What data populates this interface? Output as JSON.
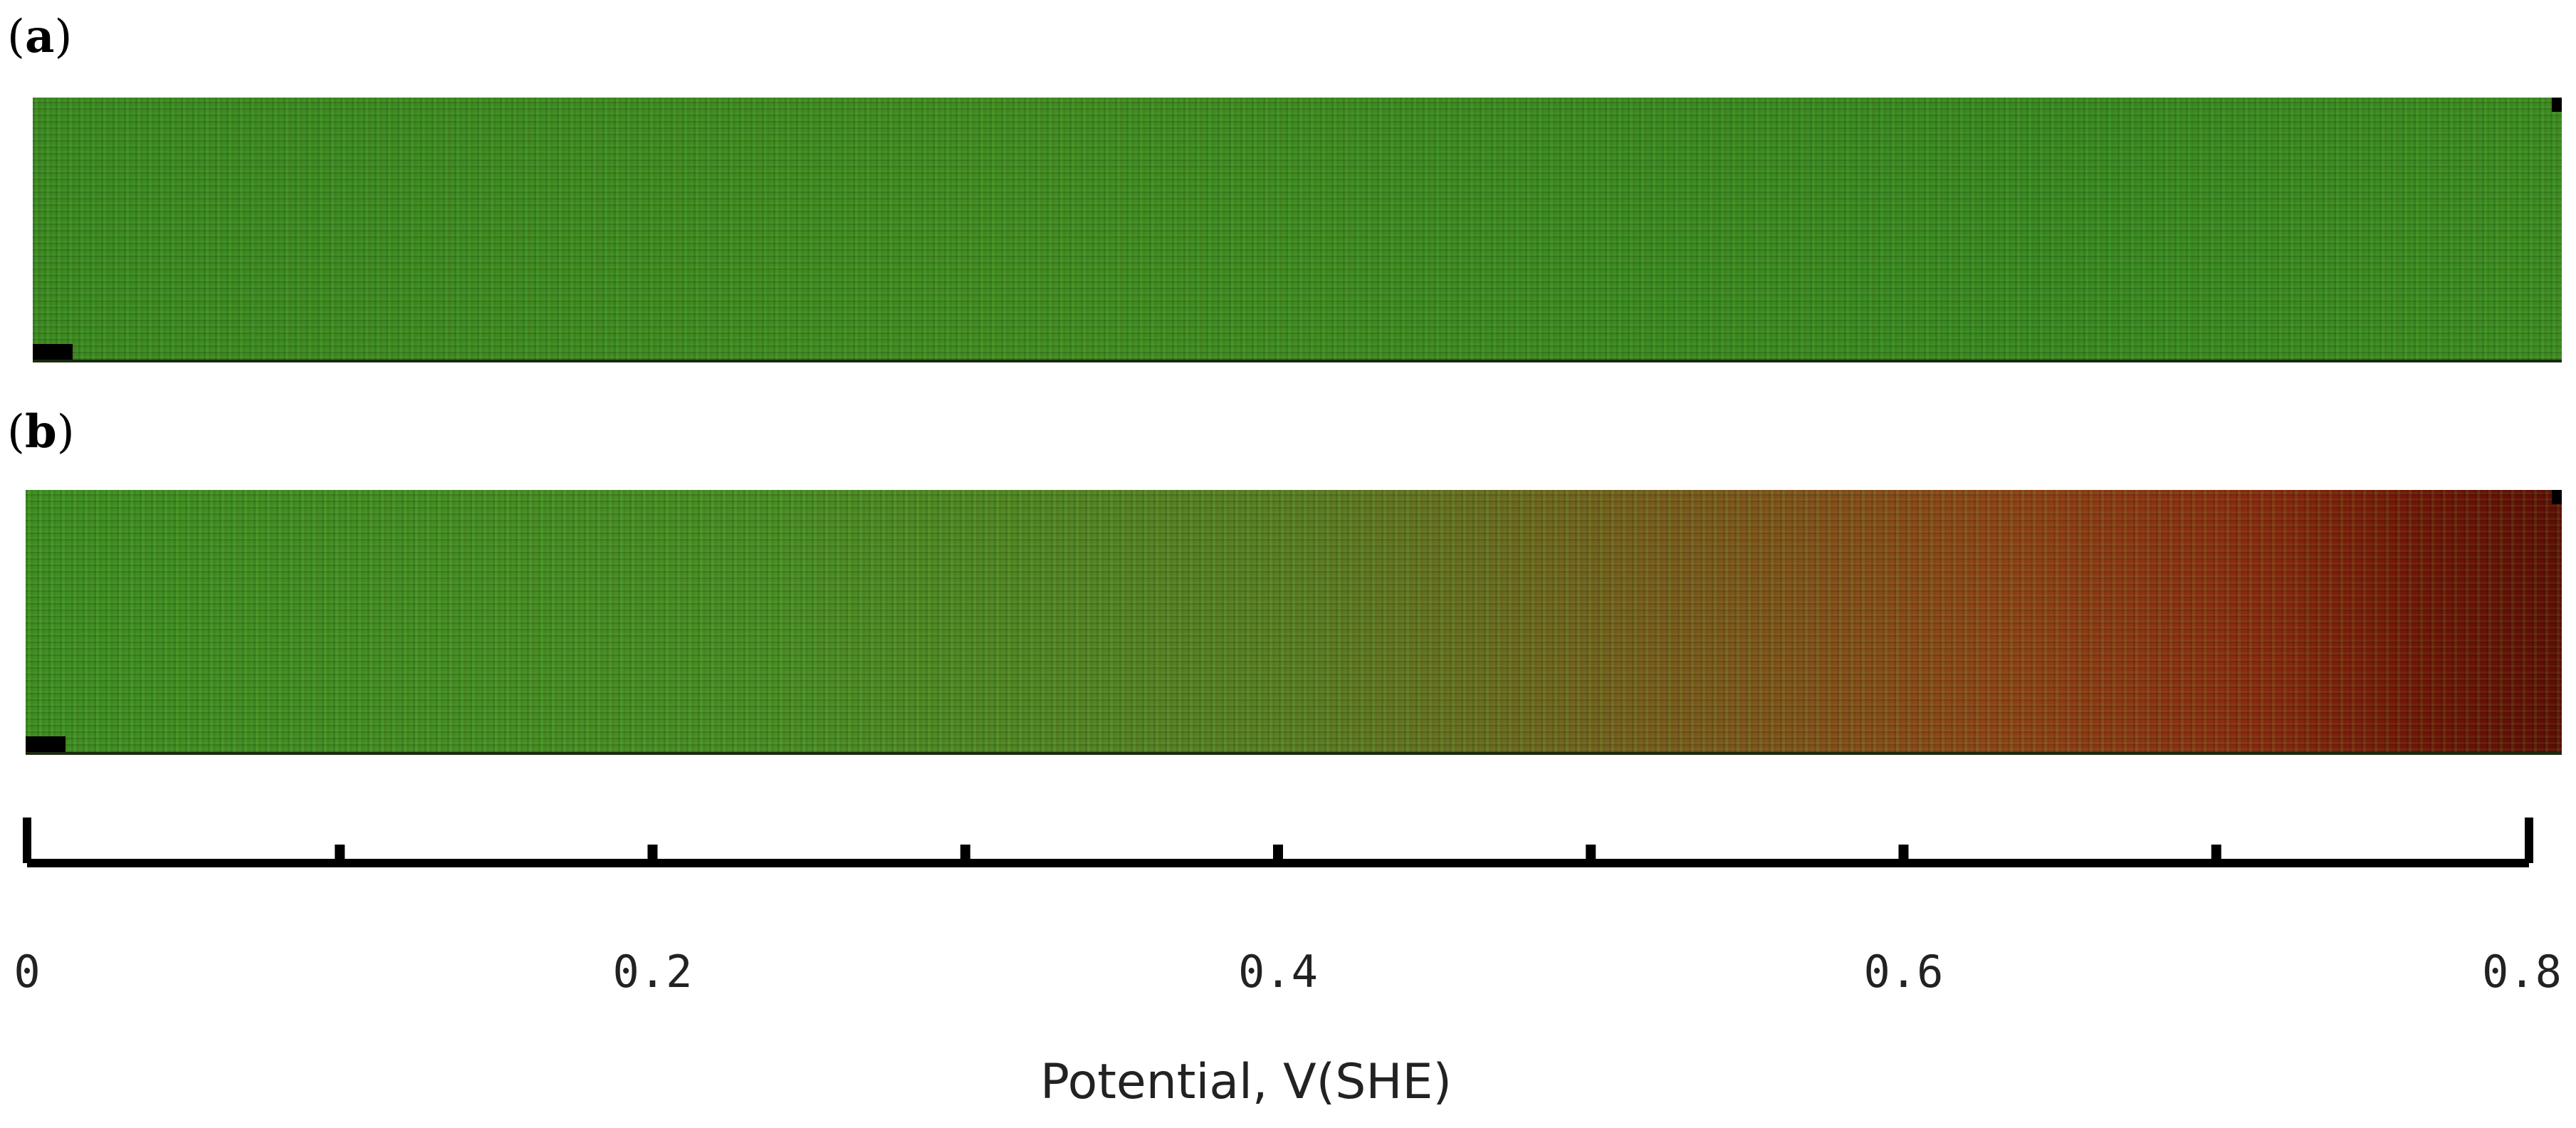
{
  "panels": [
    {
      "label": "a"
    },
    {
      "label": "b"
    }
  ],
  "axis": {
    "title": "Potential, V(SHE)",
    "range": [
      0,
      0.8
    ],
    "tick_values": [
      0,
      0.1,
      0.2,
      0.3,
      0.4,
      0.5,
      0.6,
      0.7,
      0.8
    ],
    "tick_labels": [
      "0",
      "0.2",
      "0.4",
      "0.6",
      "0.8"
    ]
  },
  "colors": {
    "strip_a_green": "#3c8a22",
    "strip_b_red_end": "#5e0e06",
    "axis": "#000000"
  }
}
